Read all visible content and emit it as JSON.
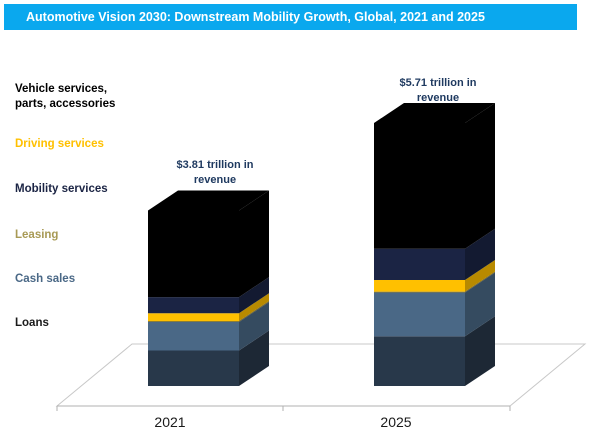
{
  "title": "Automotive Vision 2030: Downstream Mobility Growth, Global, 2021 and 2025",
  "colors": {
    "title_bar": "#0aa8ee",
    "loans": "#28384a",
    "cash_sales": "#4a6886",
    "leasing": "#8a7d3a",
    "mobility_services": "#1b2444",
    "driving_services": "#ffc000",
    "vehicle_services": "#000000",
    "annotation_text": "#1f3a60"
  },
  "legend": [
    {
      "key": "vehicle_services",
      "label": "Vehicle services,\nparts, accessories",
      "color": "#000000"
    },
    {
      "key": "driving_services",
      "label": "Driving services",
      "color": "#ffc000"
    },
    {
      "key": "mobility_services",
      "label": "Mobility services",
      "color": "#1b2444"
    },
    {
      "key": "leasing",
      "label": "Leasing",
      "color": "#a89a55"
    },
    {
      "key": "cash_sales",
      "label": "Cash sales",
      "color": "#4a6886"
    },
    {
      "key": "loans",
      "label": "Loans",
      "color": "#1a1a1a"
    }
  ],
  "annotations": [
    {
      "year": "2021",
      "text": "$3.81 trillion in\nrevenue"
    },
    {
      "year": "2025",
      "text": "$5.71 trillion in\nrevenue"
    }
  ],
  "chart_data": {
    "type": "bar",
    "stacked": true,
    "style": "3d",
    "title": "Automotive Vision 2030: Downstream Mobility Growth, Global, 2021 and 2025",
    "categories": [
      "2021",
      "2025"
    ],
    "totals": [
      3.81,
      5.71
    ],
    "unit": "trillion USD",
    "series": [
      {
        "name": "Loans",
        "values": [
          0.77,
          1.08
        ]
      },
      {
        "name": "Cash sales",
        "values": [
          0.62,
          0.95
        ]
      },
      {
        "name": "Leasing",
        "values": [
          0.02,
          0.02
        ]
      },
      {
        "name": "Driving services",
        "values": [
          0.17,
          0.25
        ]
      },
      {
        "name": "Mobility services",
        "values": [
          0.35,
          0.68
        ]
      },
      {
        "name": "Vehicle services, parts, accessories",
        "values": [
          1.88,
          2.73
        ]
      }
    ],
    "xlabel": "",
    "ylabel": "",
    "grid": false,
    "legend_position": "left"
  }
}
